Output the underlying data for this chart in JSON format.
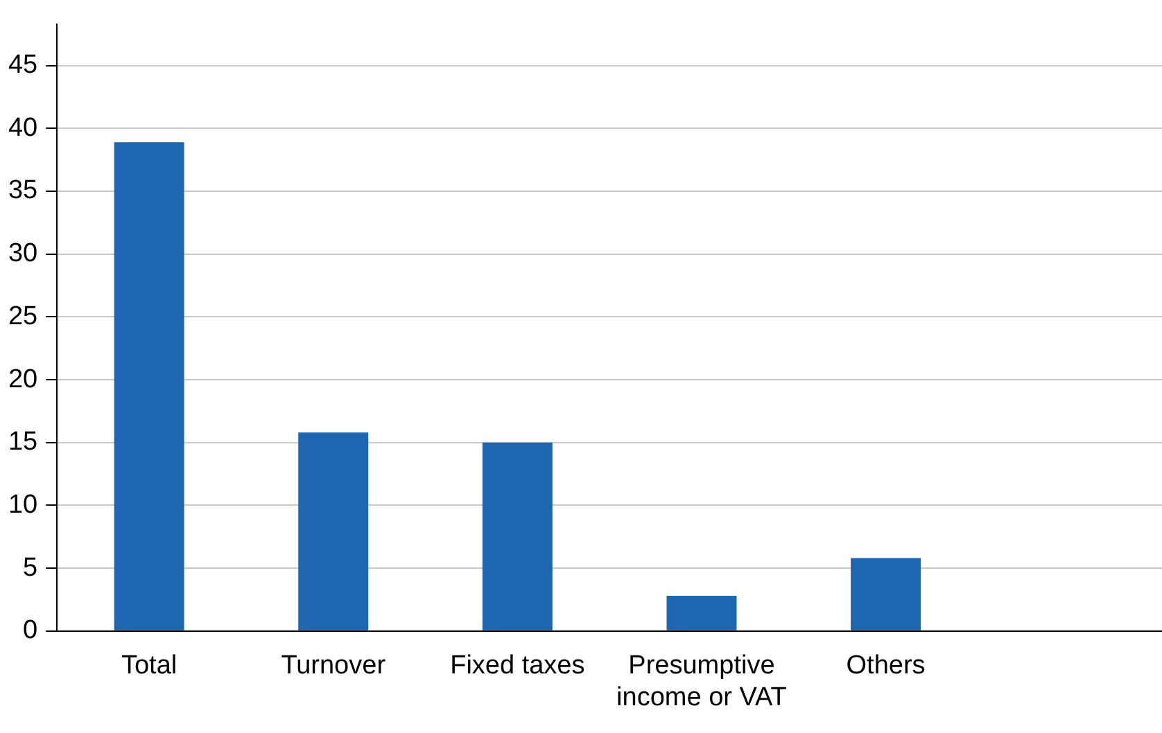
{
  "chart_data": {
    "type": "bar",
    "categories": [
      "Total",
      "Turnover",
      "Fixed taxes",
      "Presumptive income or VAT",
      "Others",
      null
    ],
    "values": [
      38.9,
      15.8,
      15,
      2.8,
      5.8,
      null
    ],
    "color": "#1f66b0",
    "ylim": [
      0,
      48.3
    ],
    "yticks": [
      0,
      5,
      10,
      15,
      20,
      25,
      30,
      35,
      40,
      45
    ],
    "grid": "y",
    "legend": false
  }
}
